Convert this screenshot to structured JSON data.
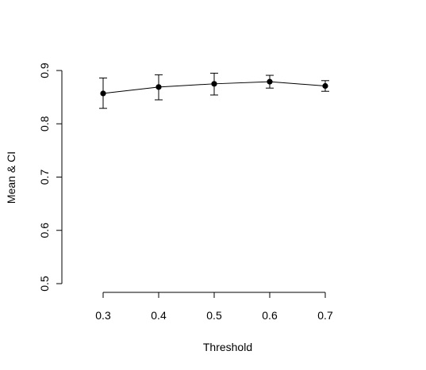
{
  "chart_data": {
    "type": "line",
    "title": "",
    "xlabel": "Threshold",
    "ylabel": "Mean & CI",
    "x": [
      0.3,
      0.4,
      0.5,
      0.6,
      0.7
    ],
    "series": [
      {
        "values": [
          0.857,
          0.869,
          0.875,
          0.879,
          0.871
        ],
        "ci_low": [
          0.829,
          0.845,
          0.854,
          0.867,
          0.861
        ],
        "ci_high": [
          0.886,
          0.892,
          0.895,
          0.891,
          0.881
        ]
      }
    ],
    "xticks": [
      "0.3",
      "0.4",
      "0.5",
      "0.6",
      "0.7"
    ],
    "yticks": [
      "0.5",
      "0.6",
      "0.7",
      "0.8",
      "0.9"
    ],
    "xlim": [
      0.3,
      0.7
    ],
    "ylim": [
      0.5,
      0.9
    ],
    "grid": false,
    "legend": "none",
    "colors": {
      "line": "#000000",
      "marker": "#000000"
    }
  }
}
